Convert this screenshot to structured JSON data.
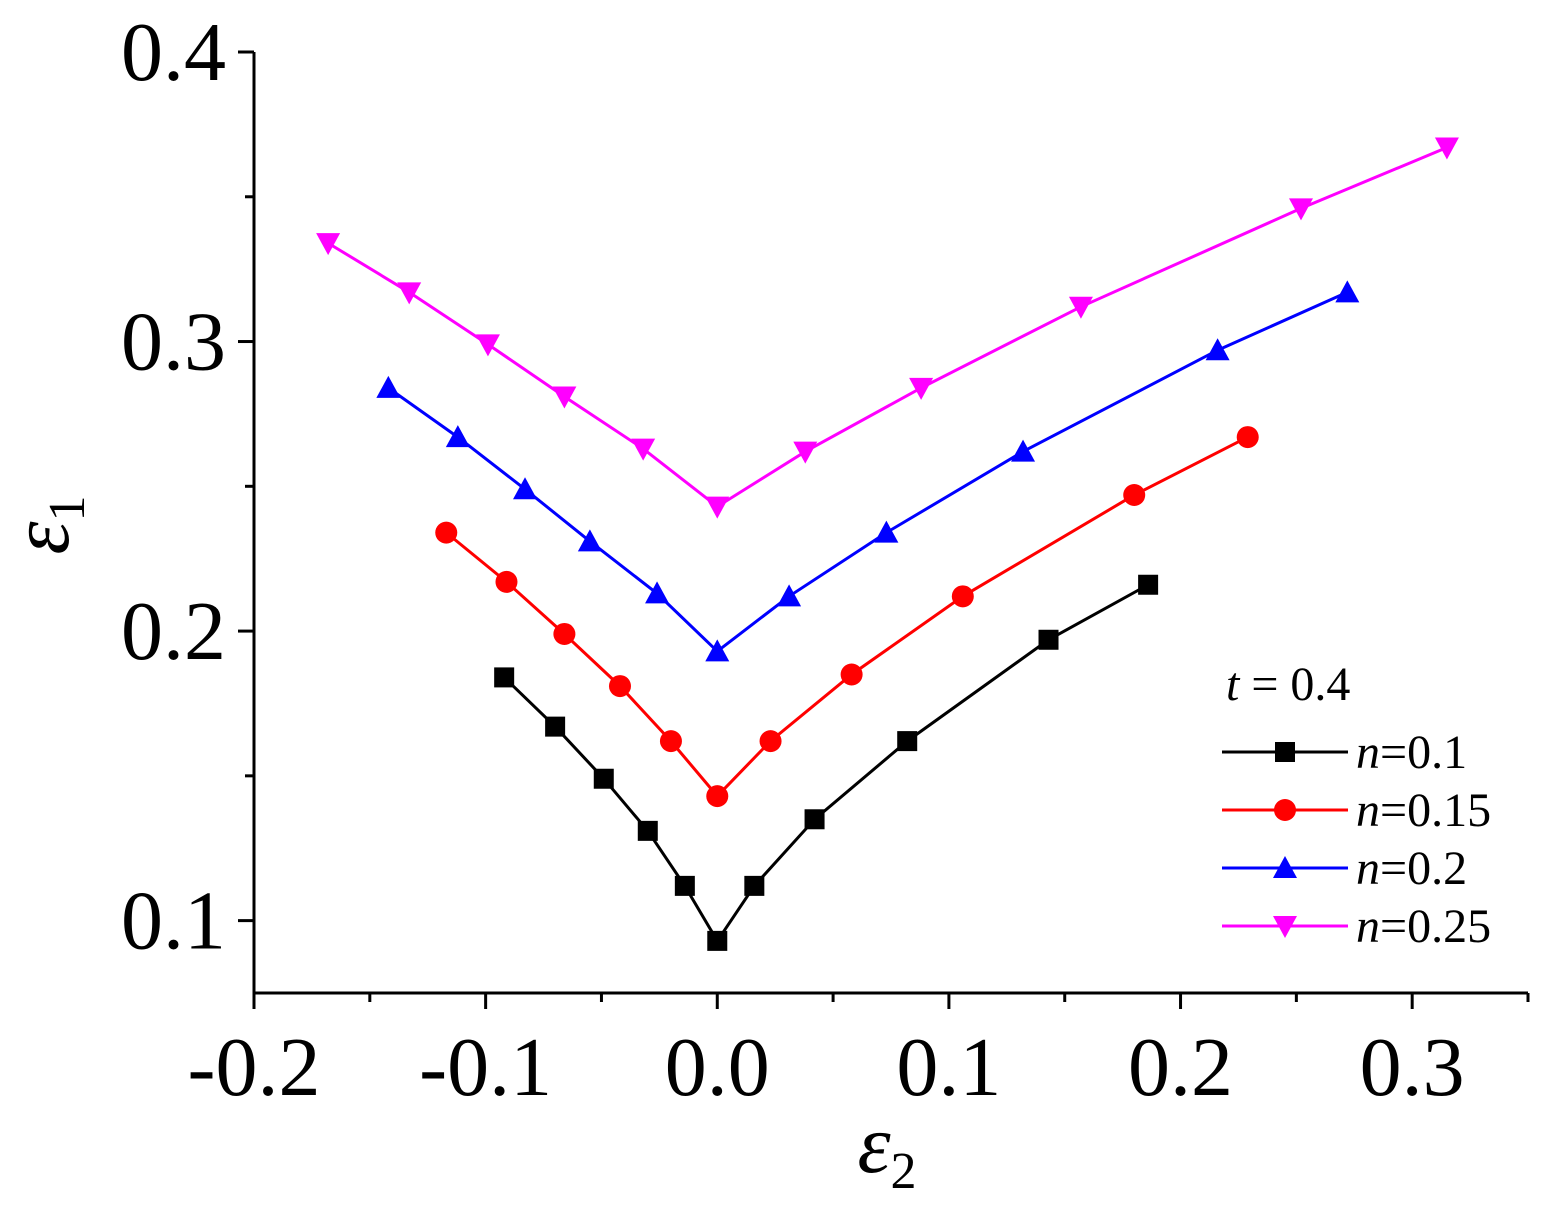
{
  "chart_data": {
    "type": "line",
    "title": "",
    "xlabel": {
      "symbol": "ε",
      "sub": "2"
    },
    "ylabel": {
      "symbol": "ε",
      "sub": "1"
    },
    "xlim": [
      -0.2,
      0.35
    ],
    "ylim": [
      0.075,
      0.4
    ],
    "xticks": [
      {
        "value": -0.2,
        "label": "-0.2"
      },
      {
        "value": -0.1,
        "label": "-0.1"
      },
      {
        "value": 0.0,
        "label": "0.0"
      },
      {
        "value": 0.1,
        "label": "0.1"
      },
      {
        "value": 0.2,
        "label": "0.2"
      },
      {
        "value": 0.3,
        "label": "0.3"
      }
    ],
    "xminor": [
      -0.15,
      -0.05,
      0.05,
      0.15,
      0.25,
      0.35
    ],
    "yticks": [
      {
        "value": 0.1,
        "label": "0.1"
      },
      {
        "value": 0.2,
        "label": "0.2"
      },
      {
        "value": 0.3,
        "label": "0.3"
      },
      {
        "value": 0.4,
        "label": "0.4"
      }
    ],
    "yminor": [
      0.15,
      0.25,
      0.35
    ],
    "grid": false,
    "legend": {
      "placement": "bottom-right",
      "title": {
        "var": "t",
        "rest": " = 0.4"
      }
    },
    "series": [
      {
        "name": "n=0.1",
        "name_var": "n",
        "name_rest": "=0.1",
        "color": "#000000",
        "marker": "square",
        "points": [
          [
            -0.092,
            0.184
          ],
          [
            -0.07,
            0.167
          ],
          [
            -0.049,
            0.149
          ],
          [
            -0.03,
            0.131
          ],
          [
            -0.014,
            0.112
          ],
          [
            0.0,
            0.093
          ],
          [
            0.016,
            0.112
          ],
          [
            0.042,
            0.135
          ],
          [
            0.082,
            0.162
          ],
          [
            0.143,
            0.197
          ],
          [
            0.186,
            0.216
          ]
        ]
      },
      {
        "name": "n=0.15",
        "name_var": "n",
        "name_rest": "=0.15",
        "color": "#ff0000",
        "marker": "circle",
        "points": [
          [
            -0.117,
            0.234
          ],
          [
            -0.091,
            0.217
          ],
          [
            -0.066,
            0.199
          ],
          [
            -0.042,
            0.181
          ],
          [
            -0.02,
            0.162
          ],
          [
            0.0,
            0.143
          ],
          [
            0.023,
            0.162
          ],
          [
            0.058,
            0.185
          ],
          [
            0.106,
            0.212
          ],
          [
            0.18,
            0.247
          ],
          [
            0.229,
            0.267
          ]
        ]
      },
      {
        "name": "n=0.2",
        "name_var": "n",
        "name_rest": "=0.2",
        "color": "#0000ff",
        "marker": "triangle-up",
        "points": [
          [
            -0.142,
            0.284
          ],
          [
            -0.112,
            0.267
          ],
          [
            -0.083,
            0.249
          ],
          [
            -0.055,
            0.231
          ],
          [
            -0.026,
            0.213
          ],
          [
            0.0,
            0.193
          ],
          [
            0.031,
            0.212
          ],
          [
            0.073,
            0.234
          ],
          [
            0.132,
            0.262
          ],
          [
            0.216,
            0.297
          ],
          [
            0.272,
            0.317
          ]
        ]
      },
      {
        "name": "n=0.25",
        "name_var": "n",
        "name_rest": "=0.25",
        "color": "#ff00ff",
        "marker": "triangle-down",
        "points": [
          [
            -0.168,
            0.334
          ],
          [
            -0.133,
            0.317
          ],
          [
            -0.099,
            0.299
          ],
          [
            -0.066,
            0.281
          ],
          [
            -0.032,
            0.263
          ],
          [
            0.0,
            0.243
          ],
          [
            0.038,
            0.262
          ],
          [
            0.088,
            0.284
          ],
          [
            0.157,
            0.312
          ],
          [
            0.252,
            0.346
          ],
          [
            0.315,
            0.367
          ]
        ]
      }
    ]
  }
}
